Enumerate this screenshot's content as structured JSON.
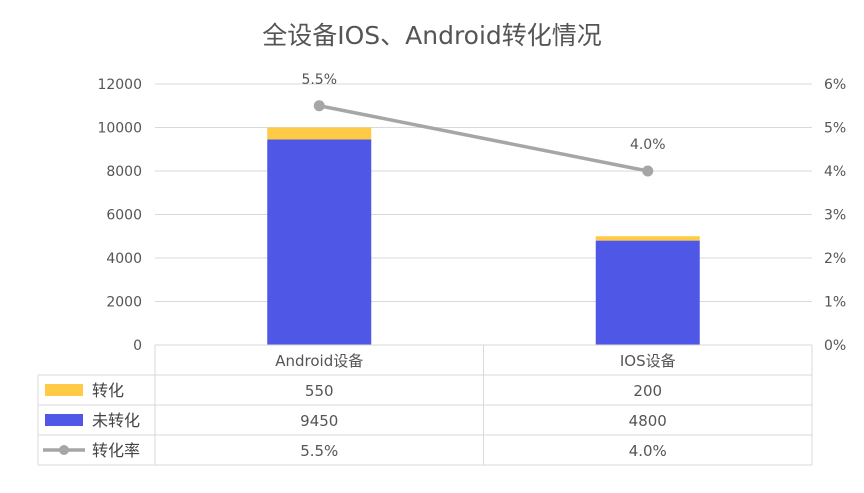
{
  "chart_data": {
    "type": "bar",
    "stacked": true,
    "title": "全设备IOS、Android转化情况",
    "categories": [
      "Android设备",
      "IOS设备"
    ],
    "series": [
      {
        "name": "转化",
        "kind": "bar",
        "axis": "left",
        "color": "#ffca45",
        "values": [
          550,
          200
        ],
        "value_labels": [
          "550",
          "200"
        ]
      },
      {
        "name": "未转化",
        "kind": "bar",
        "axis": "left",
        "color": "#4f57e6",
        "values": [
          9450,
          4800
        ],
        "value_labels": [
          "9450",
          "4800"
        ]
      },
      {
        "name": "转化率",
        "kind": "line",
        "axis": "right",
        "color": "#a6a6a6",
        "values": [
          0.055,
          0.04
        ],
        "value_labels": [
          "5.5%",
          "4.0%"
        ]
      }
    ],
    "y_left": {
      "min": 0,
      "max": 12000,
      "ticks": [
        "0",
        "2000",
        "4000",
        "6000",
        "8000",
        "10000",
        "12000"
      ]
    },
    "y_right": {
      "min": 0,
      "max": 0.06,
      "ticks": [
        "0%",
        "1%",
        "2%",
        "3%",
        "4%",
        "5%",
        "6%"
      ]
    },
    "grid": true,
    "legend": "data-table"
  }
}
